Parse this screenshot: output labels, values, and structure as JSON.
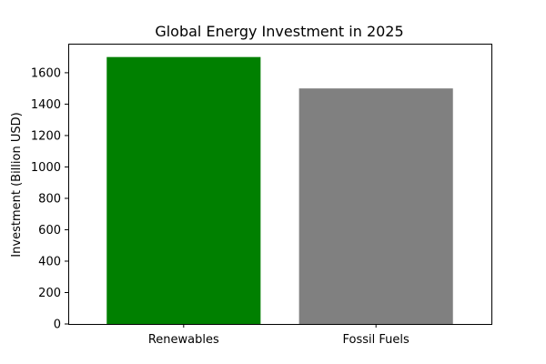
{
  "chart_data": {
    "type": "bar",
    "title": "Global Energy Investment in 2025",
    "xlabel": "",
    "ylabel": "Investment (Billion USD)",
    "categories": [
      "Renewables",
      "Fossil Fuels"
    ],
    "values": [
      1700,
      1500
    ],
    "colors": [
      "#008000",
      "#808080"
    ],
    "ylim": [
      0,
      1785
    ],
    "yticks": [
      0,
      200,
      400,
      600,
      800,
      1000,
      1200,
      1400,
      1600
    ],
    "grid": false,
    "legend": "none"
  }
}
